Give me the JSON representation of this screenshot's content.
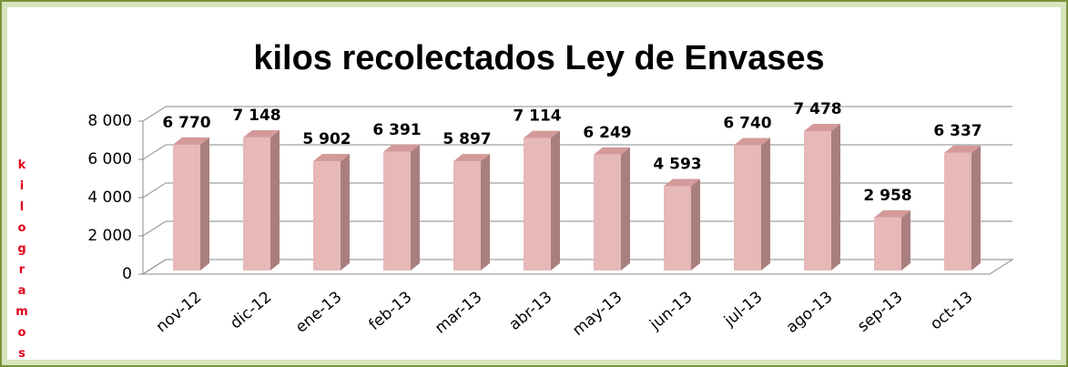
{
  "chart_data": {
    "type": "bar3d",
    "title": "kilos recolectados Ley de Envases",
    "y_label": "kilogramos",
    "categories": [
      "nov-12",
      "dic-12",
      "ene-13",
      "feb-13",
      "mar-13",
      "abr-13",
      "may-13",
      "jun-13",
      "jul-13",
      "ago-13",
      "sep-13",
      "oct-13"
    ],
    "values": [
      6770,
      7148,
      5902,
      6391,
      5897,
      7114,
      6249,
      4593,
      6740,
      7478,
      2958,
      6337
    ],
    "value_labels": [
      "6 770",
      "7 148",
      "5 902",
      "6 391",
      "5 897",
      "7 114",
      "6 249",
      "4 593",
      "6 740",
      "7 478",
      "2 958",
      "6 337"
    ],
    "color": "#e6b8b7",
    "ylim": [
      0,
      8000
    ],
    "yticks": [
      0,
      {
        "value": 2000,
        "label": "2 000"
      },
      {
        "value": 4000,
        "label": "4 000"
      },
      {
        "value": 6000,
        "label": "6 000"
      },
      {
        "value": 8000,
        "label": "8 000"
      }
    ],
    "grid": true
  }
}
